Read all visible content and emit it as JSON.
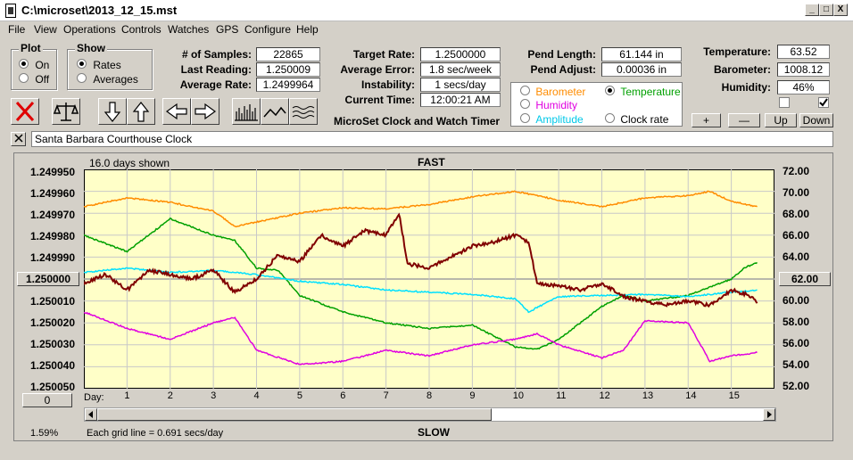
{
  "window": {
    "title": "C:\\microset\\2013_12_15.mst",
    "buttons": [
      "_",
      "□",
      "X"
    ]
  },
  "menu": [
    "File",
    "View",
    "Operations",
    "Controls",
    "Watches",
    "GPS",
    "Configure",
    "Help"
  ],
  "plot_group": {
    "title": "Plot",
    "on": "On",
    "off": "Off"
  },
  "show_group": {
    "title": "Show",
    "rates": "Rates",
    "averages": "Averages"
  },
  "stats": {
    "samples_label": "# of Samples:",
    "samples": "22865",
    "last_label": "Last Reading:",
    "last": "1.250009",
    "avg_label": "Average Rate:",
    "avg": "1.2499964",
    "target_label": "Target Rate:",
    "target": "1.2500000",
    "avgerr_label": "Average Error:",
    "avgerr": "1.8 sec/week",
    "instab_label": "Instability:",
    "instab": "1 secs/day",
    "time_label": "Current Time:",
    "time": "12:00:21 AM",
    "pendlen_label": "Pend Length:",
    "pendlen": "61.144 in",
    "pendadj_label": "Pend Adjust:",
    "pendadj": "0.00036 in",
    "temp_label": "Temperature:",
    "temp": "63.52",
    "baro_label": "Barometer:",
    "baro": "1008.12",
    "hum_label": "Humidity:",
    "hum": "46%"
  },
  "app_name": "MicroSet Clock and Watch Timer",
  "channel_options": {
    "barometer": "Barometer",
    "temperature": "Temperature",
    "humidity": "Humidity",
    "clock_rate": "Clock rate",
    "amplitude": "Amplitude"
  },
  "scale_buttons": [
    "+",
    "—",
    "Up",
    "Down"
  ],
  "clock_name": "Santa Barbara Courthouse Clock",
  "plot": {
    "days_shown": "16.0 days shown",
    "fast": "FAST",
    "slow": "SLOW",
    "day_label": "Day:",
    "grid_note": "Each grid line = 0.691 secs/day",
    "percent": "1.59%",
    "left_center": "1.250000",
    "right_center": "62.00",
    "bottom_box": "0"
  },
  "colors": {
    "plot_bg": "#ffffc8",
    "barometer": "#ff8c00",
    "temperature": "#00a000",
    "humidity": "#e000e0",
    "amplitude": "#00e0ff",
    "clock_rate": "#800000"
  },
  "chart_data": {
    "type": "line",
    "xlabel": "Day:",
    "x_ticks": [
      "1",
      "2",
      "3",
      "4",
      "5",
      "6",
      "7",
      "8",
      "9",
      "10",
      "11",
      "12",
      "13",
      "14",
      "15"
    ],
    "xlim": [
      0,
      16
    ],
    "left_axis_ticks": [
      "1.249950",
      "1.249960",
      "1.249970",
      "1.249980",
      "1.249990",
      "1.250000",
      "1.250010",
      "1.250020",
      "1.250030",
      "1.250040",
      "1.250050"
    ],
    "ylim_left": [
      1.24995,
      1.25005
    ],
    "right_axis_ticks": [
      "72.00",
      "70.00",
      "68.00",
      "66.00",
      "64.00",
      "62.00",
      "60.00",
      "58.00",
      "56.00",
      "54.00",
      "52.00"
    ],
    "ylim_right": [
      52,
      72
    ],
    "series": [
      {
        "name": "Barometer",
        "axis": "right",
        "x": [
          0,
          1,
          2,
          3,
          3.5,
          4,
          5,
          6,
          7,
          8,
          9,
          10,
          11,
          12,
          13,
          14,
          14.5,
          15,
          15.6
        ],
        "y": [
          68.6,
          69.4,
          69.0,
          68.2,
          66.8,
          67.2,
          68.0,
          68.5,
          68.4,
          68.8,
          69.5,
          70.0,
          69.2,
          68.6,
          69.4,
          69.6,
          70.0,
          69.1,
          68.6
        ]
      },
      {
        "name": "Temperature",
        "axis": "right",
        "x": [
          0,
          1,
          2,
          3,
          3.5,
          4,
          4.5,
          5,
          6,
          7,
          8,
          9,
          10,
          10.5,
          11,
          12,
          12.5,
          13,
          14,
          15,
          15.3,
          15.6
        ],
        "y": [
          66.0,
          64.5,
          67.5,
          66.0,
          65.5,
          63.0,
          62.8,
          60.5,
          59.0,
          58.0,
          57.5,
          57.8,
          55.8,
          55.6,
          56.5,
          59.5,
          60.5,
          60.0,
          60.5,
          62.0,
          63.0,
          63.5
        ]
      },
      {
        "name": "Humidity",
        "axis": "right",
        "x": [
          0,
          1,
          2,
          3,
          3.5,
          4,
          5,
          6,
          7,
          8,
          9,
          10,
          10.5,
          11,
          12,
          12.5,
          13,
          14,
          14.5,
          15,
          15.6
        ],
        "y": [
          59.0,
          57.5,
          56.5,
          58.0,
          58.5,
          55.5,
          54.2,
          54.5,
          55.5,
          55.0,
          56.0,
          56.5,
          57.0,
          56.0,
          54.8,
          55.5,
          58.2,
          58.0,
          54.5,
          55.0,
          55.3
        ]
      },
      {
        "name": "Amplitude",
        "axis": "right",
        "x": [
          0,
          1,
          2,
          3,
          4,
          5,
          6,
          7,
          8,
          9,
          10,
          10.3,
          11,
          12,
          13,
          14,
          15,
          15.6
        ],
        "y": [
          62.6,
          63.0,
          62.6,
          62.8,
          62.4,
          61.8,
          61.5,
          61.0,
          60.8,
          60.6,
          60.2,
          59.0,
          60.4,
          60.5,
          60.6,
          60.4,
          60.8,
          61.0
        ]
      },
      {
        "name": "Clock rate",
        "axis": "left",
        "x": [
          0,
          0.5,
          1,
          1.5,
          2,
          2.5,
          3,
          3.5,
          4,
          4.5,
          5,
          5.5,
          6,
          6.5,
          7,
          7.3,
          7.5,
          8,
          8.5,
          9,
          9.5,
          10,
          10.3,
          10.5,
          11,
          11.5,
          12,
          12.5,
          13,
          13.5,
          14,
          14.5,
          15,
          15.5,
          15.6
        ],
        "y": [
          1.250002,
          1.249998,
          1.250005,
          1.249996,
          1.249998,
          1.25,
          1.249996,
          1.250006,
          1.25,
          1.249989,
          1.249992,
          1.24998,
          1.249985,
          1.249978,
          1.24998,
          1.24997,
          1.249993,
          1.249995,
          1.24999,
          1.249985,
          1.249983,
          1.24998,
          1.249983,
          1.250002,
          1.250003,
          1.250005,
          1.250002,
          1.250008,
          1.25001,
          1.250012,
          1.25001,
          1.250012,
          1.250005,
          1.250008,
          1.250011
        ]
      }
    ]
  }
}
